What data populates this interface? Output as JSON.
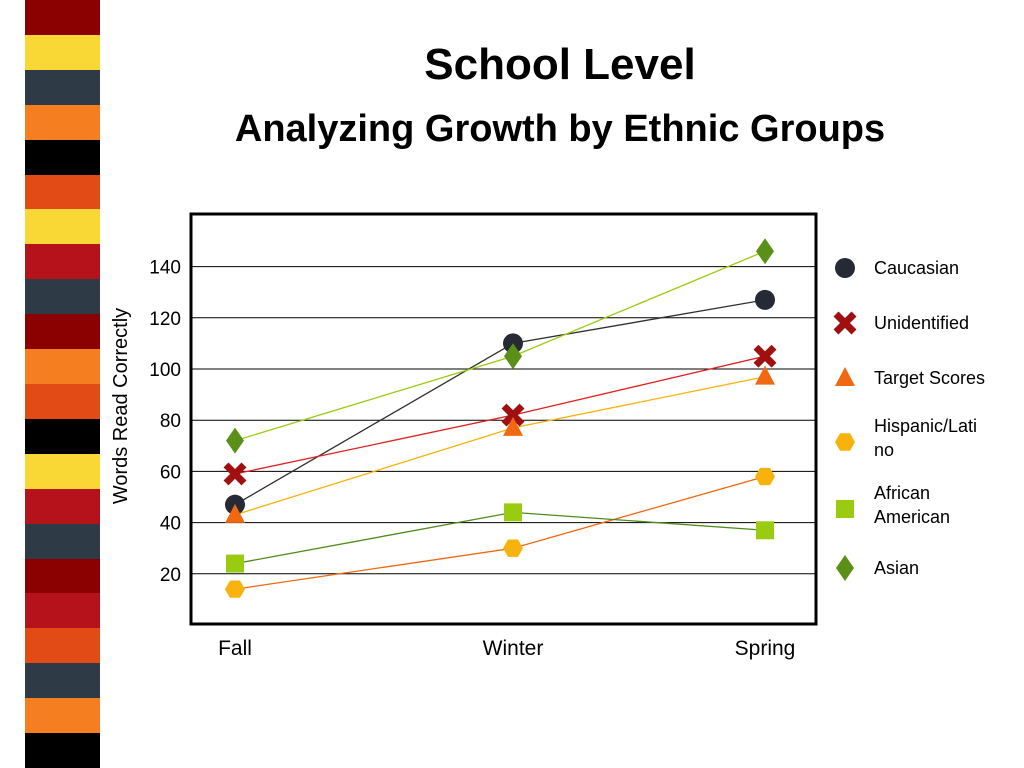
{
  "slide": {
    "title_line1": "School Level",
    "title_line2": "Analyzing Growth by Ethnic Groups"
  },
  "stripe_colors": [
    "#8b0000",
    "#f9d835",
    "#2e3a46",
    "#f57f20",
    "#000000",
    "#e34b16",
    "#f9d835",
    "#b5121b",
    "#2e3a46",
    "#8b0000",
    "#f57f20",
    "#e34b16",
    "#000000",
    "#f9d835",
    "#b5121b",
    "#2e3a46",
    "#8b0000",
    "#b5121b",
    "#e34b16",
    "#2e3a46",
    "#f57f20",
    "#000000"
  ],
  "chart_data": {
    "type": "line",
    "title": "",
    "xlabel": "",
    "ylabel": "Words Read Correctly",
    "categories": [
      "Fall",
      "Winter",
      "Spring"
    ],
    "yticks": [
      20,
      40,
      60,
      80,
      100,
      120,
      140
    ],
    "ylim": [
      0,
      160
    ],
    "grid": true,
    "legend_position": "right",
    "series": [
      {
        "name": "Caucasian",
        "values": [
          47,
          110,
          127
        ],
        "marker": "circle",
        "marker_color": "#252a35",
        "line_color": "#2f2f2f"
      },
      {
        "name": "Unidentified",
        "values": [
          59,
          82,
          105
        ],
        "marker": "x",
        "marker_color": "#a01010",
        "line_color": "#e02020"
      },
      {
        "name": "Target Scores",
        "values": [
          43,
          77,
          97
        ],
        "marker": "triangle",
        "marker_color": "#f06810",
        "line_color": "#f7b30c"
      },
      {
        "name": "Hispanic/Latino",
        "legend_lines": [
          "Hispanic/Lati",
          "no"
        ],
        "values": [
          14,
          30,
          58
        ],
        "marker": "hexagon",
        "marker_color": "#f7b30c",
        "line_color": "#f06810"
      },
      {
        "name": "African American",
        "legend_lines": [
          "African",
          "American"
        ],
        "values": [
          24,
          44,
          37
        ],
        "marker": "square",
        "marker_color": "#99cc11",
        "line_color": "#4f8a1b"
      },
      {
        "name": "Asian",
        "values": [
          72,
          105,
          146
        ],
        "marker": "diamond",
        "marker_color": "#5a8f18",
        "line_color": "#99cc11"
      }
    ]
  }
}
